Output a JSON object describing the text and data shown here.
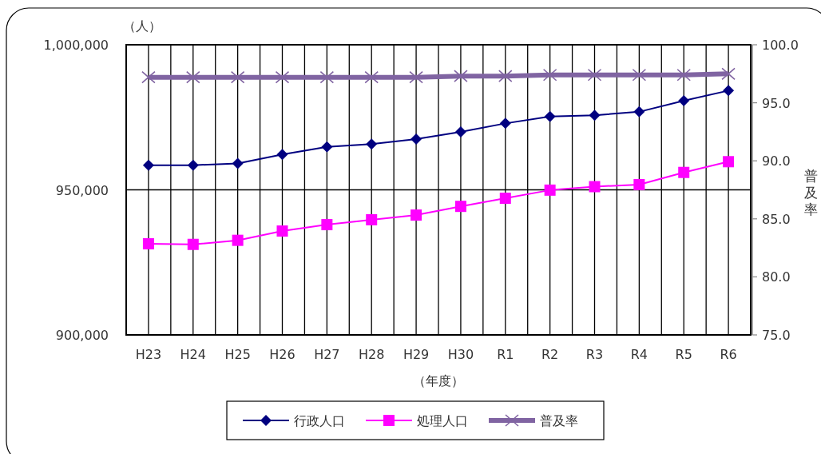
{
  "chart_data": {
    "type": "line",
    "xlabel": "（年度）",
    "ylabel": "（人）",
    "y2label": "普及率",
    "categories": [
      "H23",
      "H24",
      "H25",
      "H26",
      "H27",
      "H28",
      "H29",
      "H30",
      "R1",
      "R2",
      "R3",
      "R4",
      "R5",
      "R6"
    ],
    "series": [
      {
        "name": "行政人口",
        "color": "#000080",
        "marker": "diamond",
        "values": [
          958500,
          958500,
          959100,
          962200,
          964800,
          965800,
          967500,
          970000,
          972900,
          975300,
          975700,
          976900,
          980700,
          984200
        ]
      },
      {
        "name": "処理人口",
        "color": "#ff00ff",
        "marker": "square",
        "values": [
          931400,
          931200,
          932600,
          935800,
          938000,
          939700,
          941300,
          944300,
          947100,
          949900,
          951100,
          951800,
          956000,
          959700
        ]
      },
      {
        "name": "普及率",
        "color": "#8064a2",
        "marker": "cross",
        "axis": "y2",
        "values": [
          97.2,
          97.2,
          97.2,
          97.2,
          97.2,
          97.2,
          97.2,
          97.3,
          97.3,
          97.4,
          97.4,
          97.4,
          97.4,
          97.5
        ]
      }
    ],
    "ylim": [
      900000,
      1000000
    ],
    "yticks": [
      {
        "value": 900000,
        "label": "900,000"
      },
      {
        "value": 950000,
        "label": "950,000"
      },
      {
        "value": 1000000,
        "label": "1,000,000"
      }
    ],
    "y2lim": [
      75,
      100
    ],
    "y2ticks": [
      {
        "value": 75,
        "label": "75.0"
      },
      {
        "value": 80,
        "label": "80.0"
      },
      {
        "value": 85,
        "label": "85.0"
      },
      {
        "value": 90,
        "label": "90.0"
      },
      {
        "value": 95,
        "label": "95.0"
      },
      {
        "value": 100,
        "label": "100.0"
      }
    ],
    "grid": true,
    "legend": "bottom"
  }
}
